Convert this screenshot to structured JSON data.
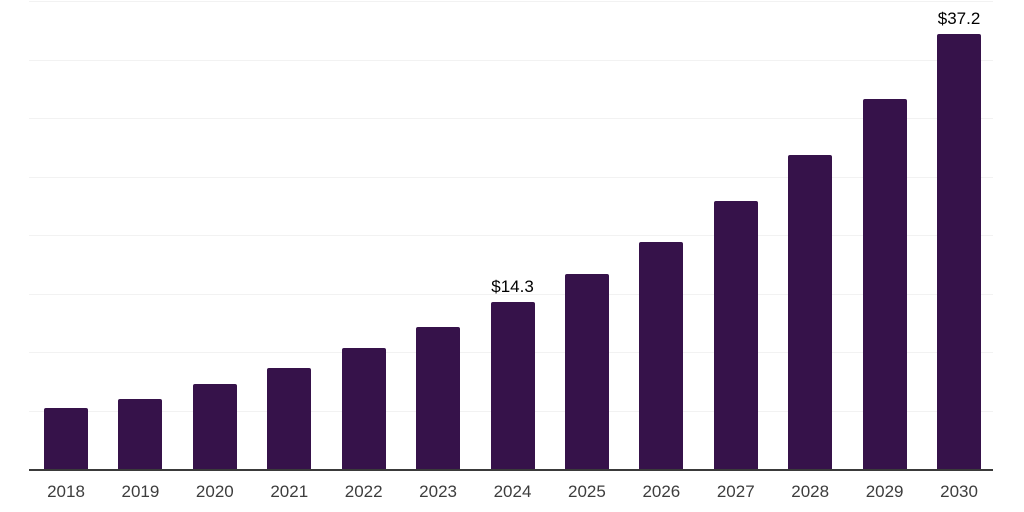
{
  "chart_data": {
    "type": "bar",
    "title": "",
    "xlabel": "",
    "ylabel": "",
    "categories": [
      "2018",
      "2019",
      "2020",
      "2021",
      "2022",
      "2023",
      "2024",
      "2025",
      "2026",
      "2027",
      "2028",
      "2029",
      "2030"
    ],
    "values": [
      5.2,
      6.0,
      7.3,
      8.6,
      10.3,
      12.1,
      14.3,
      16.7,
      19.4,
      22.9,
      26.8,
      31.6,
      37.2
    ],
    "value_labels": [
      "",
      "",
      "",
      "",
      "",
      "",
      "$14.3",
      "",
      "",
      "",
      "",
      "",
      "$37.2"
    ],
    "ylim": [
      0,
      40
    ],
    "gridline_step": 5,
    "grid": true,
    "legend": false,
    "y_axis_labels_visible": false
  },
  "colors": {
    "bar": "#36124A",
    "gridline": "#f2f2f2",
    "axis_line": "#3a3a3a",
    "tick_label": "#3d3d3d",
    "value_label": "#000000",
    "background": "#ffffff"
  }
}
